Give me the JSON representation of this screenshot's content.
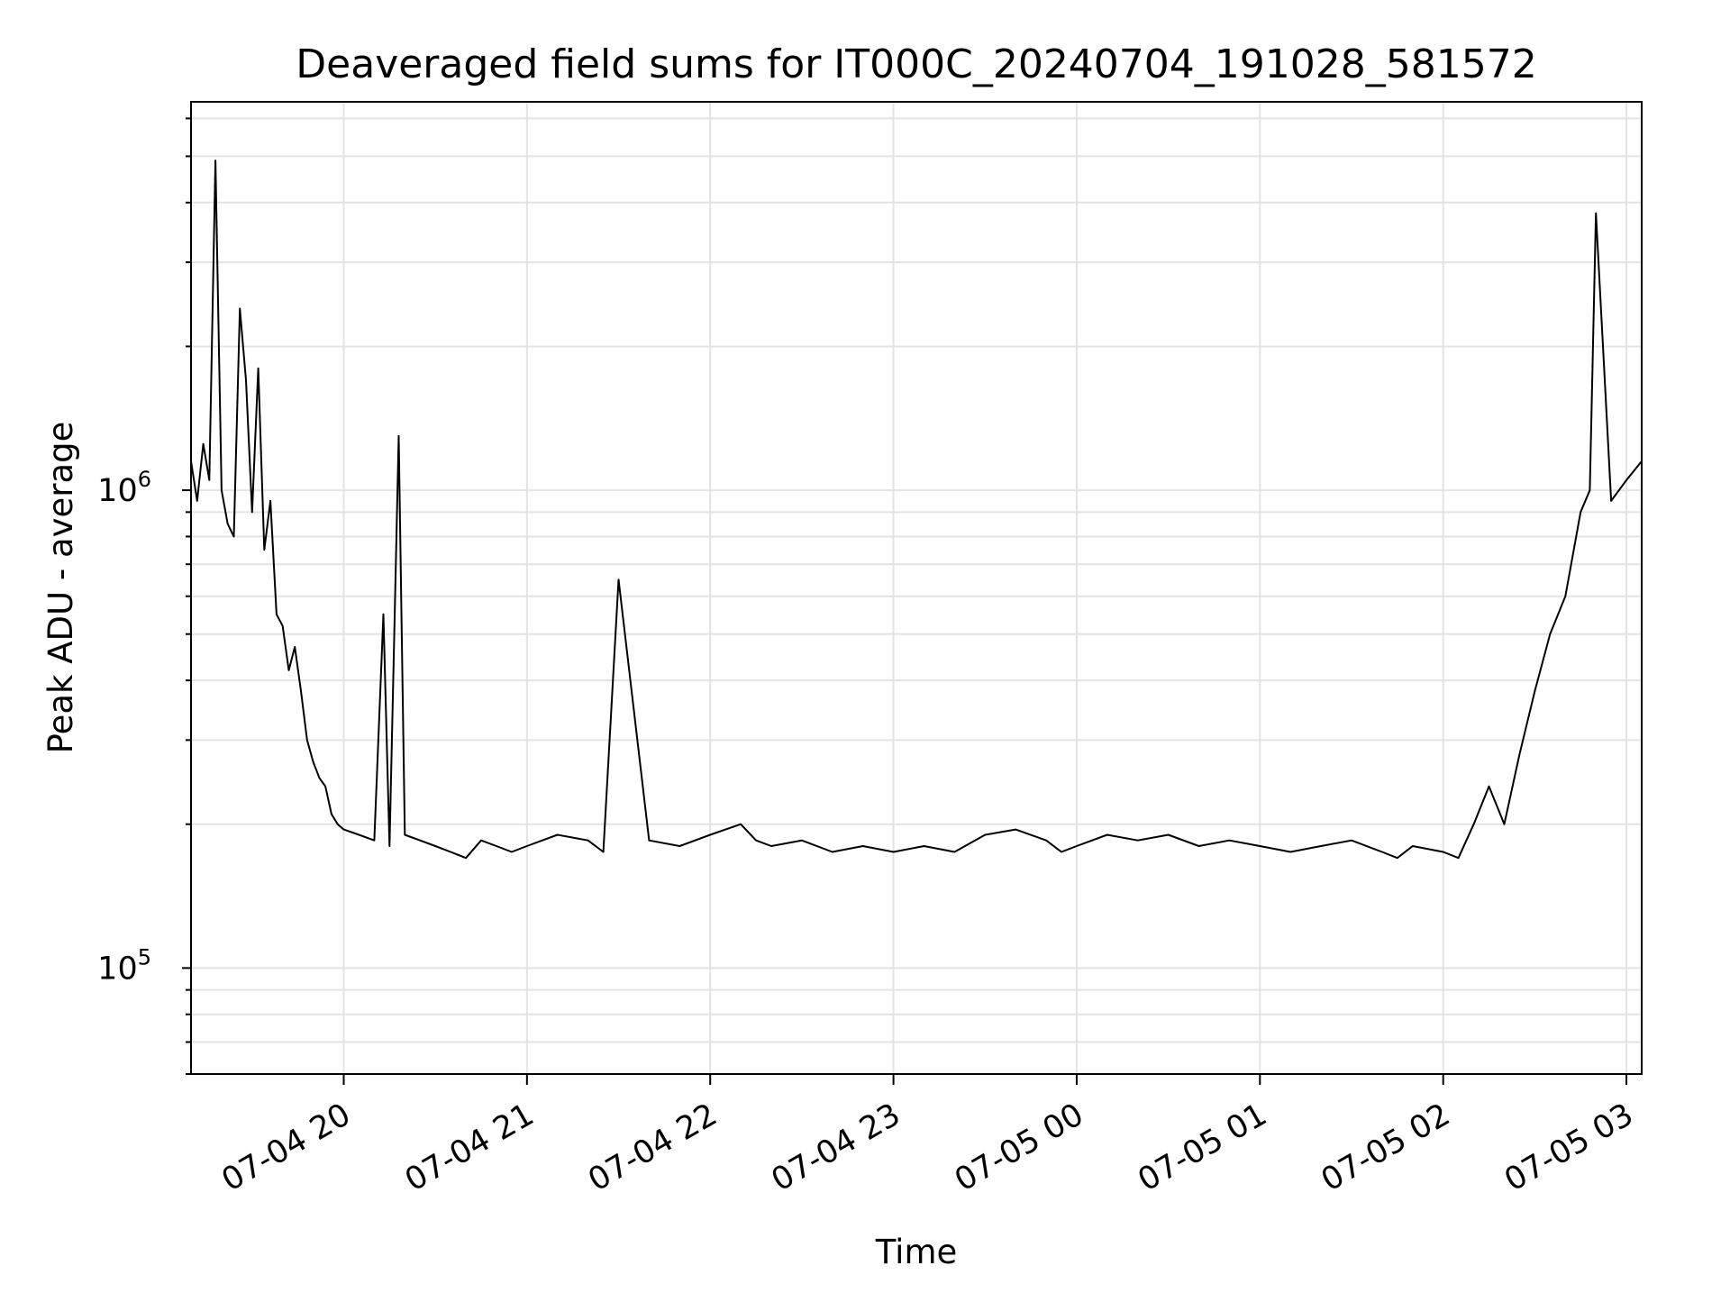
{
  "chart_data": {
    "type": "line",
    "title": "Deaveraged field sums for IT000C_20240704_191028_581572",
    "xlabel": "Time",
    "ylabel": "Peak ADU - average",
    "yscale": "log",
    "grid": true,
    "legend": "none",
    "series_color": "#000000",
    "xlim": [
      "2024-07-04 19:10",
      "2024-07-05 03:05"
    ],
    "ylim": [
      60000,
      6500000
    ],
    "x_ticks": [
      {
        "value": "2024-07-04 20:00",
        "label": "07-04 20"
      },
      {
        "value": "2024-07-04 21:00",
        "label": "07-04 21"
      },
      {
        "value": "2024-07-04 22:00",
        "label": "07-04 22"
      },
      {
        "value": "2024-07-04 23:00",
        "label": "07-04 23"
      },
      {
        "value": "2024-07-05 00:00",
        "label": "07-05 00"
      },
      {
        "value": "2024-07-05 01:00",
        "label": "07-05 01"
      },
      {
        "value": "2024-07-05 02:00",
        "label": "07-05 02"
      },
      {
        "value": "2024-07-05 03:00",
        "label": "07-05 03"
      }
    ],
    "y_ticks": [
      {
        "value": 100000,
        "base": "10",
        "exp": "5"
      },
      {
        "value": 1000000,
        "base": "10",
        "exp": "6"
      }
    ],
    "series": [
      {
        "x": [
          "2024-07-04 19:10",
          "2024-07-04 19:12",
          "2024-07-04 19:14",
          "2024-07-04 19:16",
          "2024-07-04 19:18",
          "2024-07-04 19:20",
          "2024-07-04 19:22",
          "2024-07-04 19:24",
          "2024-07-04 19:26",
          "2024-07-04 19:28",
          "2024-07-04 19:30",
          "2024-07-04 19:32",
          "2024-07-04 19:34",
          "2024-07-04 19:36",
          "2024-07-04 19:38",
          "2024-07-04 19:40",
          "2024-07-04 19:42",
          "2024-07-04 19:44",
          "2024-07-04 19:46",
          "2024-07-04 19:48",
          "2024-07-04 19:50",
          "2024-07-04 19:52",
          "2024-07-04 19:54",
          "2024-07-04 19:56",
          "2024-07-04 19:58",
          "2024-07-04 20:00",
          "2024-07-04 20:05",
          "2024-07-04 20:10",
          "2024-07-04 20:13",
          "2024-07-04 20:15",
          "2024-07-04 20:18",
          "2024-07-04 20:20",
          "2024-07-04 20:25",
          "2024-07-04 20:30",
          "2024-07-04 20:35",
          "2024-07-04 20:40",
          "2024-07-04 20:45",
          "2024-07-04 20:50",
          "2024-07-04 20:55",
          "2024-07-04 21:00",
          "2024-07-04 21:10",
          "2024-07-04 21:20",
          "2024-07-04 21:25",
          "2024-07-04 21:30",
          "2024-07-04 21:40",
          "2024-07-04 21:50",
          "2024-07-04 22:00",
          "2024-07-04 22:10",
          "2024-07-04 22:15",
          "2024-07-04 22:20",
          "2024-07-04 22:30",
          "2024-07-04 22:40",
          "2024-07-04 22:50",
          "2024-07-04 23:00",
          "2024-07-04 23:10",
          "2024-07-04 23:20",
          "2024-07-04 23:30",
          "2024-07-04 23:40",
          "2024-07-04 23:50",
          "2024-07-04 23:55",
          "2024-07-05 00:00",
          "2024-07-05 00:10",
          "2024-07-05 00:20",
          "2024-07-05 00:30",
          "2024-07-05 00:40",
          "2024-07-05 00:50",
          "2024-07-05 01:00",
          "2024-07-05 01:10",
          "2024-07-05 01:20",
          "2024-07-05 01:30",
          "2024-07-05 01:40",
          "2024-07-05 01:45",
          "2024-07-05 01:50",
          "2024-07-05 02:00",
          "2024-07-05 02:05",
          "2024-07-05 02:10",
          "2024-07-05 02:15",
          "2024-07-05 02:20",
          "2024-07-05 02:25",
          "2024-07-05 02:30",
          "2024-07-05 02:35",
          "2024-07-05 02:40",
          "2024-07-05 02:45",
          "2024-07-05 02:48",
          "2024-07-05 02:50",
          "2024-07-05 02:55",
          "2024-07-05 03:00",
          "2024-07-05 03:05"
        ],
        "y": [
          1150000,
          950000,
          1250000,
          1050000,
          4900000,
          1000000,
          850000,
          800000,
          2400000,
          1700000,
          900000,
          1800000,
          750000,
          950000,
          550000,
          520000,
          420000,
          470000,
          380000,
          300000,
          270000,
          250000,
          240000,
          210000,
          200000,
          195000,
          190000,
          185000,
          550000,
          180000,
          1300000,
          190000,
          185000,
          180000,
          175000,
          170000,
          185000,
          180000,
          175000,
          180000,
          190000,
          185000,
          175000,
          650000,
          185000,
          180000,
          190000,
          200000,
          185000,
          180000,
          185000,
          175000,
          180000,
          175000,
          180000,
          175000,
          190000,
          195000,
          185000,
          175000,
          180000,
          190000,
          185000,
          190000,
          180000,
          185000,
          180000,
          175000,
          180000,
          185000,
          175000,
          170000,
          180000,
          175000,
          170000,
          200000,
          240000,
          200000,
          280000,
          380000,
          500000,
          600000,
          900000,
          1000000,
          3800000,
          950000,
          1050000,
          1150000
        ]
      }
    ]
  }
}
